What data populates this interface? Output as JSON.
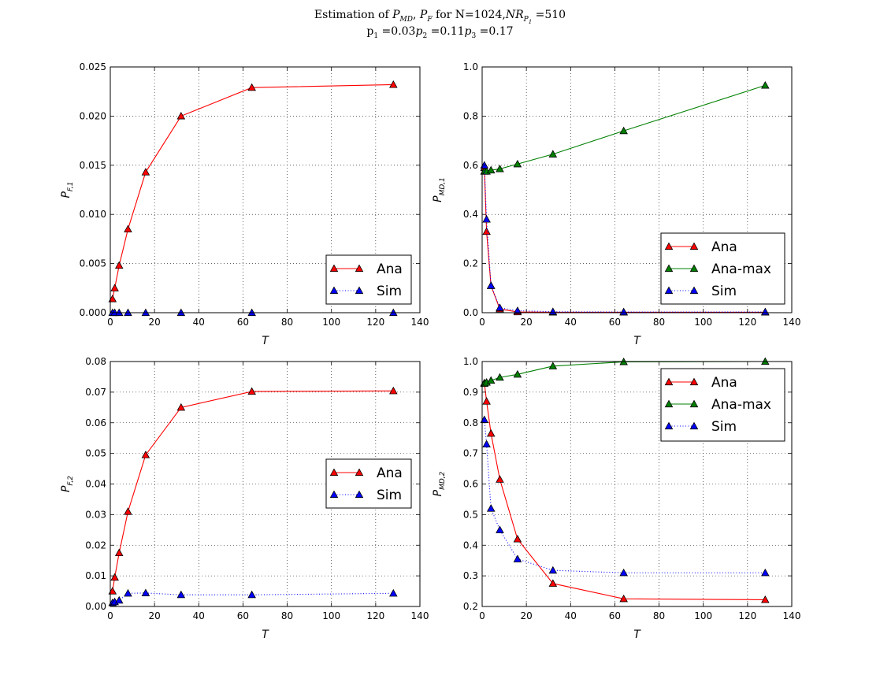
{
  "figure": {
    "title_line1": "Estimation of P_MD, P_F for N=1024,NR_P1 =510",
    "title_line2": "p1 =0.03p2 =0.11p3 =0.17"
  },
  "colors": {
    "red": "#ff0000",
    "green": "#008000",
    "blue": "#0000ff"
  },
  "chart_data": [
    {
      "type": "line",
      "xlabel": "T",
      "ylabel": "P_F,1",
      "xlim": [
        0,
        140
      ],
      "ylim": [
        0,
        0.025
      ],
      "xticks": [
        "0",
        "20",
        "40",
        "60",
        "80",
        "100",
        "120",
        "140"
      ],
      "yticks": [
        "0.000",
        "0.005",
        "0.010",
        "0.015",
        "0.020",
        "0.025"
      ],
      "grid": true,
      "legend_position": "lower-right",
      "series": [
        {
          "name": "Ana",
          "color": "#ff0000",
          "style": "solid",
          "x": [
            1,
            2,
            4,
            8,
            16,
            32,
            64,
            128
          ],
          "y": [
            0.0014,
            0.0025,
            0.0048,
            0.0085,
            0.0143,
            0.02,
            0.0229,
            0.0232
          ]
        },
        {
          "name": "Sim",
          "color": "#0000ff",
          "style": "dotted",
          "x": [
            1,
            2,
            4,
            8,
            16,
            32,
            64,
            128
          ],
          "y": [
            0,
            0,
            0,
            0,
            0,
            0,
            0,
            0
          ]
        }
      ]
    },
    {
      "type": "line",
      "xlabel": "T",
      "ylabel": "P_MD,1",
      "xlim": [
        0,
        140
      ],
      "ylim": [
        0,
        1.0
      ],
      "xticks": [
        "0",
        "20",
        "40",
        "60",
        "80",
        "100",
        "120",
        "140"
      ],
      "yticks": [
        "0.0",
        "0.2",
        "0.4",
        "0.6",
        "0.8",
        "1.0"
      ],
      "grid": true,
      "legend_position": "lower-right",
      "series": [
        {
          "name": "Ana",
          "color": "#ff0000",
          "style": "solid",
          "x": [
            1,
            2,
            4,
            8,
            16,
            32,
            64,
            128
          ],
          "y": [
            0.59,
            0.33,
            0.11,
            0.015,
            0.003,
            0.002,
            0.002,
            0.002
          ]
        },
        {
          "name": "Ana-max",
          "color": "#008000",
          "style": "solid",
          "x": [
            1,
            2,
            4,
            8,
            16,
            32,
            64,
            128
          ],
          "y": [
            0.575,
            0.575,
            0.58,
            0.585,
            0.605,
            0.645,
            0.74,
            0.925
          ]
        },
        {
          "name": "Sim",
          "color": "#0000ff",
          "style": "dotted",
          "x": [
            1,
            2,
            4,
            8,
            16,
            32,
            64,
            128
          ],
          "y": [
            0.6,
            0.38,
            0.11,
            0.02,
            0.008,
            0.004,
            0.003,
            0.003
          ]
        }
      ]
    },
    {
      "type": "line",
      "xlabel": "T",
      "ylabel": "P_F,2",
      "xlim": [
        0,
        140
      ],
      "ylim": [
        0,
        0.08
      ],
      "xticks": [
        "0",
        "20",
        "40",
        "60",
        "80",
        "100",
        "120",
        "140"
      ],
      "yticks": [
        "0.00",
        "0.01",
        "0.02",
        "0.03",
        "0.04",
        "0.05",
        "0.06",
        "0.07",
        "0.08"
      ],
      "grid": true,
      "legend_position": "center-right",
      "series": [
        {
          "name": "Ana",
          "color": "#ff0000",
          "style": "solid",
          "x": [
            1,
            2,
            4,
            8,
            16,
            32,
            64,
            128
          ],
          "y": [
            0.005,
            0.0095,
            0.0175,
            0.031,
            0.0495,
            0.065,
            0.0702,
            0.0704
          ]
        },
        {
          "name": "Sim",
          "color": "#0000ff",
          "style": "dotted",
          "x": [
            1,
            2,
            4,
            8,
            16,
            32,
            64,
            128
          ],
          "y": [
            0.0012,
            0.0015,
            0.002,
            0.0043,
            0.0044,
            0.0038,
            0.0038,
            0.0043
          ]
        }
      ]
    },
    {
      "type": "line",
      "xlabel": "T",
      "ylabel": "P_MD,2",
      "xlim": [
        0,
        140
      ],
      "ylim": [
        0.2,
        1.0
      ],
      "xticks": [
        "0",
        "20",
        "40",
        "60",
        "80",
        "100",
        "120",
        "140"
      ],
      "yticks": [
        "0.2",
        "0.3",
        "0.4",
        "0.5",
        "0.6",
        "0.7",
        "0.8",
        "0.9",
        "1.0"
      ],
      "grid": true,
      "legend_position": "upper-right",
      "series": [
        {
          "name": "Ana",
          "color": "#ff0000",
          "style": "solid",
          "x": [
            1,
            2,
            4,
            8,
            16,
            32,
            64,
            128
          ],
          "y": [
            0.93,
            0.87,
            0.765,
            0.615,
            0.42,
            0.275,
            0.225,
            0.222
          ]
        },
        {
          "name": "Ana-max",
          "color": "#008000",
          "style": "solid",
          "x": [
            1,
            2,
            4,
            8,
            16,
            32,
            64,
            128
          ],
          "y": [
            0.928,
            0.932,
            0.938,
            0.948,
            0.958,
            0.985,
            0.999,
            1.0
          ]
        },
        {
          "name": "Sim",
          "color": "#0000ff",
          "style": "dotted",
          "x": [
            1,
            2,
            4,
            8,
            16,
            32,
            64,
            128
          ],
          "y": [
            0.81,
            0.73,
            0.52,
            0.45,
            0.355,
            0.318,
            0.31,
            0.31
          ]
        }
      ]
    }
  ]
}
